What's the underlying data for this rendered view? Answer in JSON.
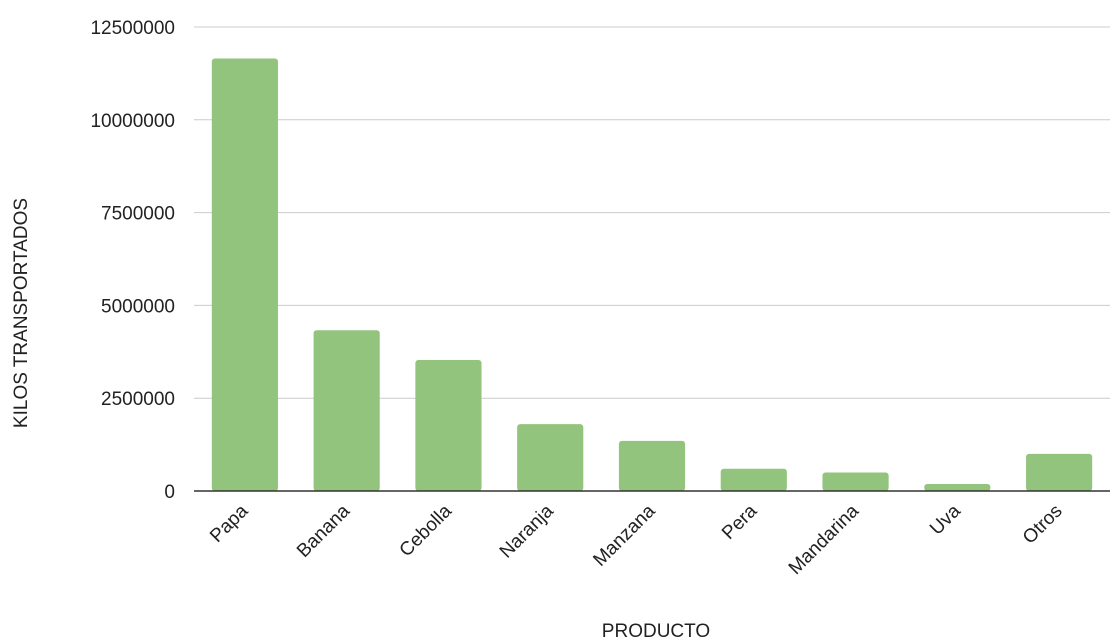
{
  "chart_data": {
    "type": "bar",
    "title": "",
    "xlabel": "PRODUCTO",
    "ylabel": "KILOS TRANSPORTADOS",
    "categories": [
      "Papa",
      "Banana",
      "Cebolla",
      "Naranja",
      "Manzana",
      "Pera",
      "Mandarina",
      "Uva",
      "Otros"
    ],
    "values": [
      11650000,
      4330000,
      3530000,
      1800000,
      1350000,
      600000,
      500000,
      190000,
      1000000
    ],
    "ylim": [
      0,
      12500000
    ],
    "yticks": [
      "0",
      "2500000",
      "5000000",
      "7500000",
      "10000000",
      "12500000"
    ],
    "grid": true,
    "legend": "none",
    "bar_color": "#93c47d",
    "grid_color": "#cccccc",
    "axis_color": "#333333"
  }
}
